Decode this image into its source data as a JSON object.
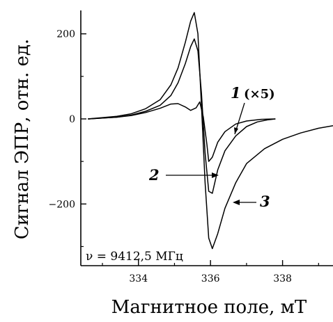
{
  "chart_data": {
    "type": "line",
    "title": "",
    "xlabel": "Магнитное поле, мТ",
    "ylabel": "Сигнал ЭПР, отн. ед.",
    "xlim": [
      332.4,
      339.4
    ],
    "ylim": [
      -345,
      255
    ],
    "xticks": [
      334,
      336,
      338
    ],
    "yticks": [
      -200,
      0,
      200
    ],
    "grid": false,
    "annotation": "ν = 9412,5 МГц",
    "series": [
      {
        "name": "1",
        "note": "(×5)",
        "x": [
          332.6,
          333.0,
          333.4,
          333.8,
          334.2,
          334.6,
          334.9,
          335.1,
          335.3,
          335.45,
          335.6,
          335.7,
          335.8,
          335.9,
          335.95,
          336.05,
          336.2,
          336.4,
          336.7,
          337.0,
          337.4,
          337.8
        ],
        "y": [
          0,
          2,
          4,
          8,
          15,
          25,
          35,
          36,
          28,
          20,
          26,
          40,
          5,
          -60,
          -100,
          -90,
          -55,
          -30,
          -12,
          -5,
          -1,
          0
        ]
      },
      {
        "name": "2",
        "x": [
          332.6,
          333.0,
          333.4,
          333.8,
          334.2,
          334.6,
          334.9,
          335.1,
          335.3,
          335.45,
          335.55,
          335.65,
          335.75,
          335.85,
          335.95,
          336.05,
          336.2,
          336.4,
          336.7,
          337.0,
          337.3,
          337.6,
          337.8
        ],
        "y": [
          0,
          2,
          4,
          9,
          18,
          32,
          55,
          85,
          130,
          170,
          188,
          160,
          60,
          -80,
          -170,
          -175,
          -120,
          -75,
          -40,
          -18,
          -7,
          -2,
          0
        ]
      },
      {
        "name": "3",
        "x": [
          332.6,
          333.0,
          333.4,
          333.8,
          334.2,
          334.6,
          334.9,
          335.1,
          335.3,
          335.45,
          335.55,
          335.65,
          335.75,
          335.85,
          335.95,
          336.05,
          336.2,
          336.4,
          336.7,
          337.0,
          337.5,
          338.0,
          338.5,
          339.0,
          339.4
        ],
        "y": [
          0,
          3,
          6,
          12,
          24,
          45,
          80,
          120,
          180,
          230,
          250,
          200,
          30,
          -150,
          -280,
          -305,
          -270,
          -210,
          -150,
          -105,
          -70,
          -48,
          -33,
          -22,
          -16
        ]
      }
    ],
    "labels": [
      {
        "text": "1",
        "note": "(×5)"
      },
      {
        "text": "2"
      },
      {
        "text": "3"
      }
    ]
  }
}
